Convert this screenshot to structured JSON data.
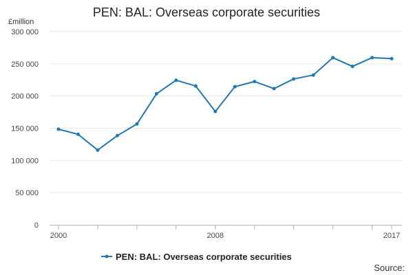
{
  "chart_data": {
    "type": "line",
    "title": "PEN: BAL: Overseas corporate securities",
    "ylabel": "£million",
    "xlabel": "",
    "ylim": [
      0,
      300000
    ],
    "xlim": [
      2000,
      2017
    ],
    "y_ticks": [
      0,
      50000,
      100000,
      150000,
      200000,
      250000,
      300000
    ],
    "y_tick_labels": [
      "0",
      "50 000",
      "100 000",
      "150 000",
      "200 000",
      "250 000",
      "300 000"
    ],
    "x_tick_labels": [
      {
        "x": 2000,
        "label": "2000"
      },
      {
        "x": 2008,
        "label": "2008"
      },
      {
        "x": 2017,
        "label": "2017"
      }
    ],
    "grid": "horizontal",
    "legend_position": "bottom",
    "series": [
      {
        "name": "PEN: BAL: Overseas corporate securities",
        "color": "#1f77b4",
        "x": [
          2000,
          2001,
          2002,
          2003,
          2004,
          2005,
          2006,
          2007,
          2008,
          2009,
          2010,
          2011,
          2012,
          2013,
          2014,
          2015,
          2016,
          2017
        ],
        "values": [
          148500,
          140500,
          116000,
          138500,
          156500,
          203500,
          224500,
          215500,
          176000,
          214500,
          222500,
          211500,
          226500,
          232500,
          259500,
          246000,
          259500,
          258000
        ]
      }
    ]
  },
  "source_label": "Source:"
}
